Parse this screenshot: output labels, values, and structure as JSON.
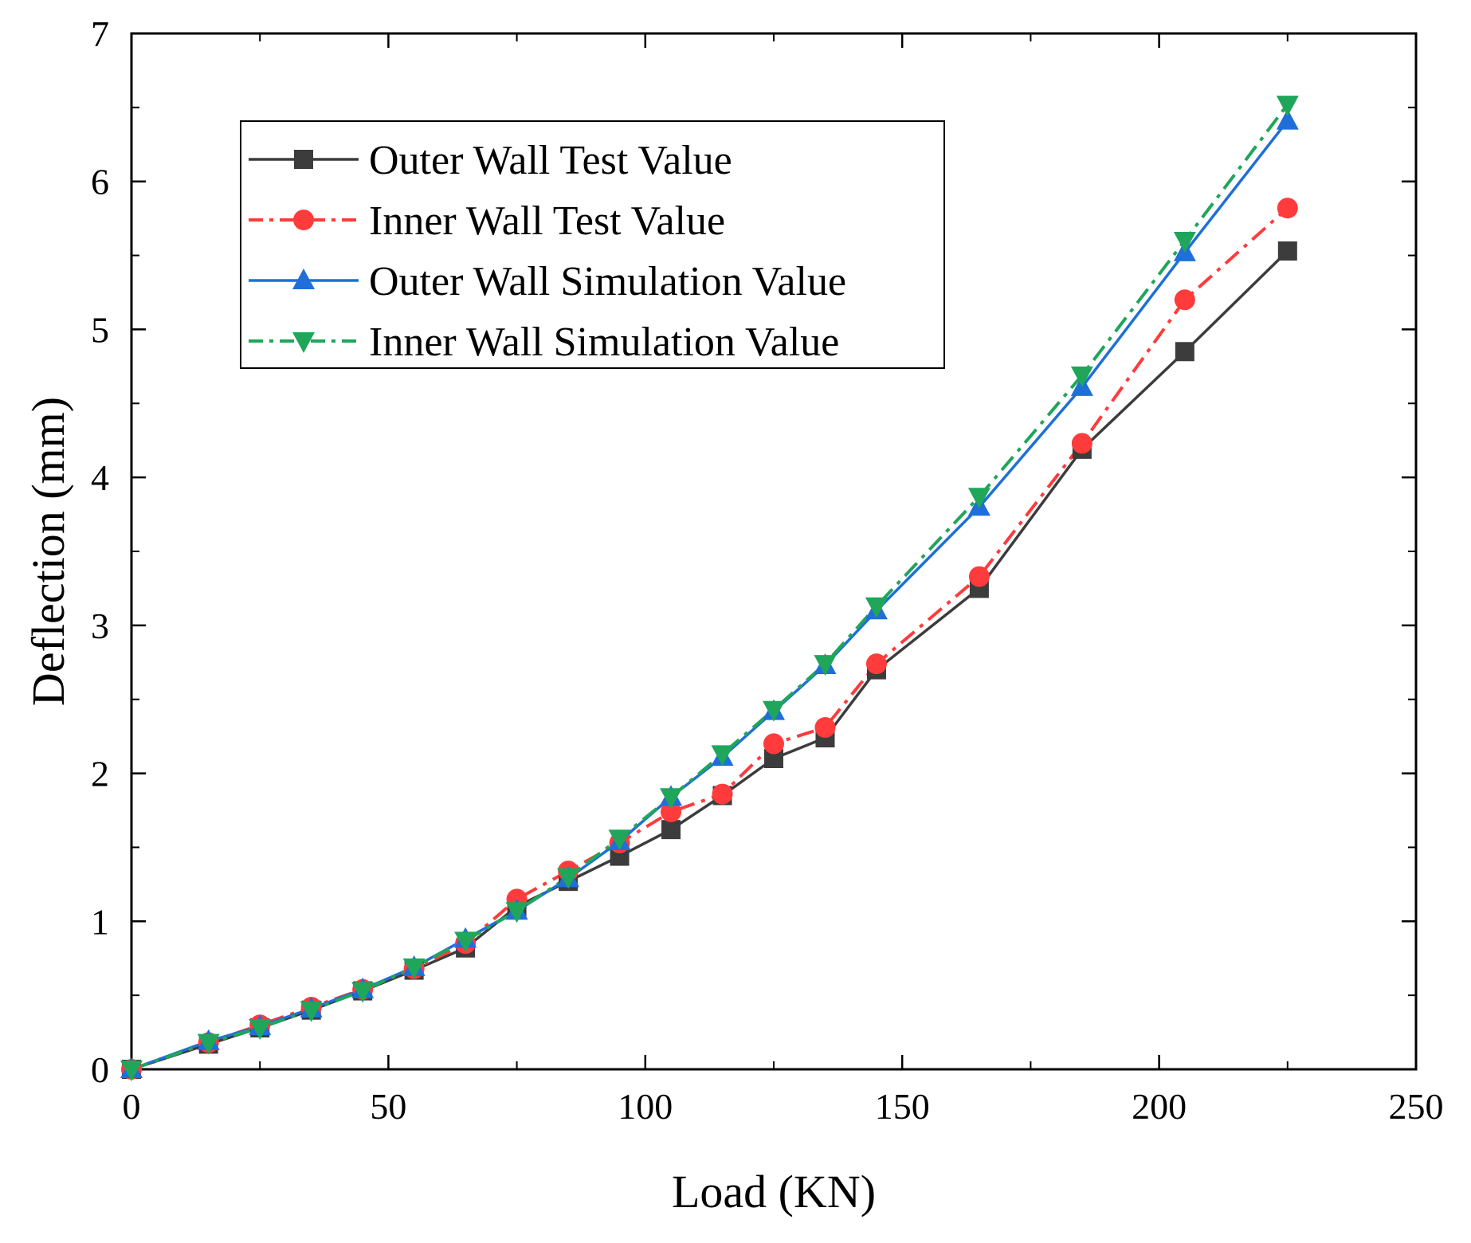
{
  "chart_data": {
    "type": "line",
    "title": "",
    "xlabel": "Load (KN)",
    "ylabel": "Deflection (mm)",
    "xlim": [
      0,
      250
    ],
    "ylim": [
      0,
      7
    ],
    "x_ticks": [
      "0",
      "50",
      "100",
      "150",
      "200",
      "250"
    ],
    "y_ticks": [
      "0",
      "1",
      "2",
      "3",
      "4",
      "5",
      "6",
      "7"
    ],
    "grid": false,
    "legend_position": "top-left",
    "series": [
      {
        "name": "Outer Wall Test Value",
        "color": "#3c3c3c",
        "marker": "square",
        "line_style": "solid",
        "x": [
          0,
          15,
          25,
          35,
          45,
          55,
          65,
          75,
          85,
          95,
          105,
          115,
          125,
          135,
          145,
          165,
          185,
          205,
          225
        ],
        "y": [
          0,
          0.17,
          0.28,
          0.4,
          0.53,
          0.67,
          0.82,
          1.1,
          1.27,
          1.44,
          1.62,
          1.85,
          2.1,
          2.24,
          2.7,
          3.25,
          4.19,
          4.85,
          5.53
        ]
      },
      {
        "name": "Inner Wall Test Value",
        "color": "#ff3b3b",
        "marker": "circle",
        "line_style": "dash-dot",
        "x": [
          0,
          15,
          25,
          35,
          45,
          55,
          65,
          75,
          85,
          95,
          105,
          115,
          125,
          135,
          145,
          165,
          185,
          205,
          225
        ],
        "y": [
          0,
          0.18,
          0.3,
          0.42,
          0.54,
          0.68,
          0.85,
          1.15,
          1.34,
          1.53,
          1.74,
          1.86,
          2.2,
          2.31,
          2.74,
          3.33,
          4.23,
          5.2,
          5.82
        ]
      },
      {
        "name": "Outer Wall Simulation Value",
        "color": "#1e6fd9",
        "marker": "triangle-up",
        "line_style": "solid",
        "x": [
          0,
          15,
          25,
          35,
          45,
          55,
          65,
          75,
          85,
          95,
          105,
          115,
          125,
          135,
          145,
          165,
          185,
          205,
          225
        ],
        "y": [
          0,
          0.19,
          0.29,
          0.41,
          0.54,
          0.69,
          0.88,
          1.07,
          1.29,
          1.54,
          1.84,
          2.11,
          2.42,
          2.73,
          3.1,
          3.8,
          4.61,
          5.52,
          6.41
        ]
      },
      {
        "name": "Inner Wall Simulation Value",
        "color": "#1fa65a",
        "marker": "triangle-down",
        "line_style": "dash-dot",
        "x": [
          0,
          15,
          25,
          35,
          45,
          55,
          65,
          75,
          85,
          95,
          105,
          115,
          125,
          135,
          145,
          165,
          185,
          205,
          225
        ],
        "y": [
          0,
          0.18,
          0.28,
          0.4,
          0.53,
          0.69,
          0.87,
          1.07,
          1.3,
          1.56,
          1.84,
          2.13,
          2.43,
          2.74,
          3.13,
          3.87,
          4.69,
          5.6,
          6.52
        ]
      }
    ]
  }
}
